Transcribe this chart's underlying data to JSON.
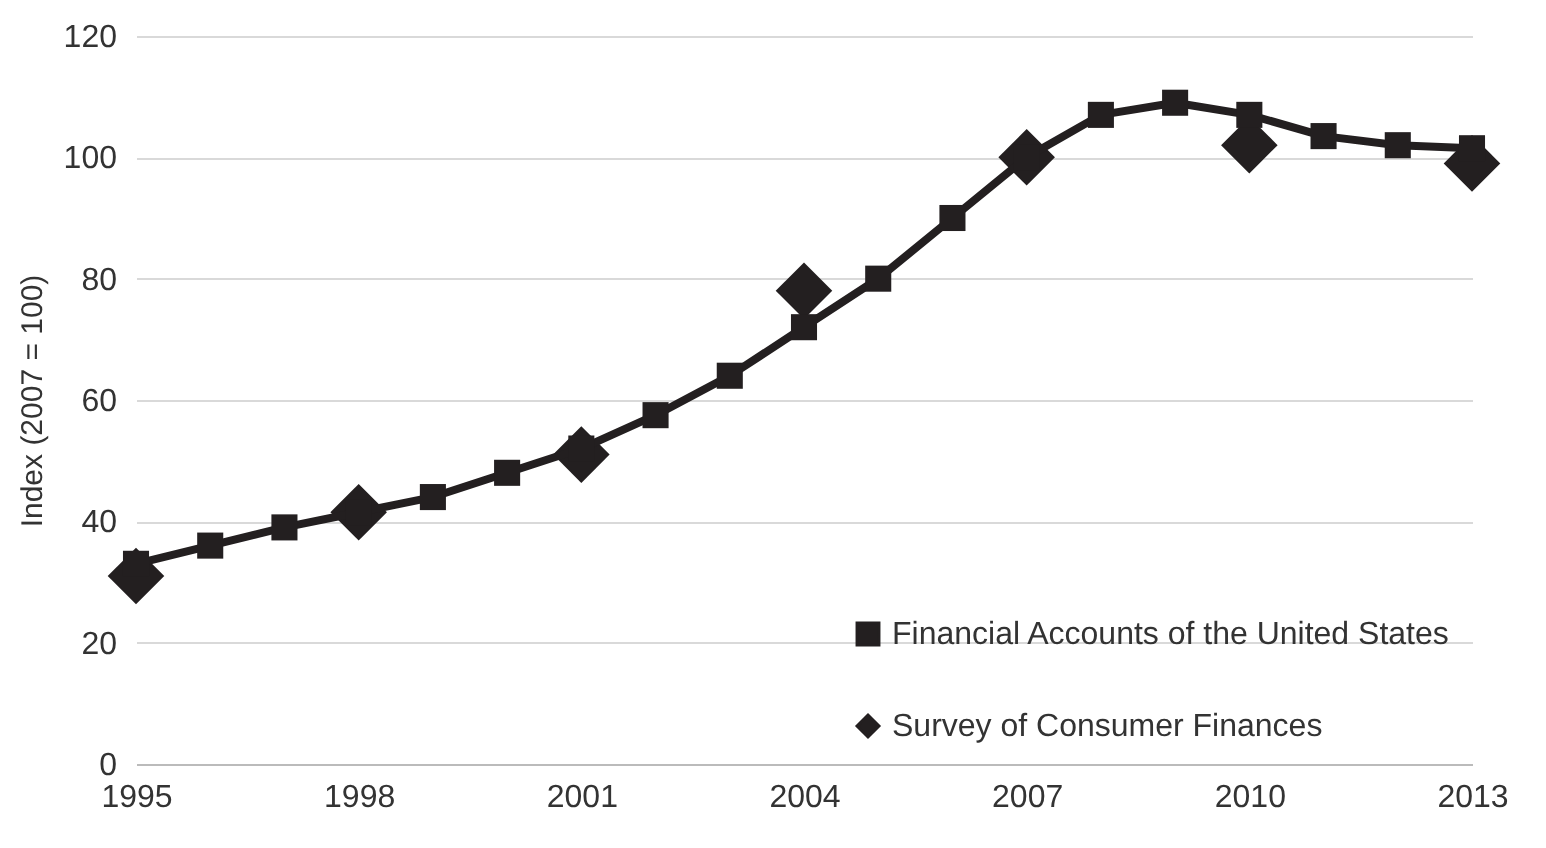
{
  "chart_data": {
    "type": "line",
    "ylabel": "Index  (2007 = 100)",
    "x": [
      1995,
      1996,
      1997,
      1998,
      1999,
      2000,
      2001,
      2002,
      2003,
      2004,
      2005,
      2006,
      2007,
      2008,
      2009,
      2010,
      2011,
      2012,
      2013
    ],
    "series": [
      {
        "name": "Financial Accounts of the United States",
        "color": "#231f20",
        "marker": "square",
        "values": [
          33,
          36,
          39,
          41.5,
          44,
          48,
          52,
          57.5,
          64,
          72,
          80,
          90,
          100,
          107,
          109,
          107,
          103.5,
          102,
          101.5
        ]
      },
      {
        "name": "Survey of Consumer Finances",
        "type": "scatter",
        "color": "#231f20",
        "marker": "diamond",
        "x": [
          1995,
          1998,
          2001,
          2004,
          2007,
          2010,
          2013
        ],
        "values": [
          31,
          41.5,
          51,
          78,
          100,
          102,
          99
        ]
      }
    ],
    "xlim": [
      1995,
      2013
    ],
    "xticks": [
      1995,
      1998,
      2001,
      2004,
      2007,
      2010,
      2013
    ],
    "ylim": [
      0,
      120
    ],
    "yticks": [
      0,
      20,
      40,
      60,
      80,
      100,
      120
    ],
    "grid": "y",
    "legend": "bottom right",
    "line_style": "solid"
  }
}
